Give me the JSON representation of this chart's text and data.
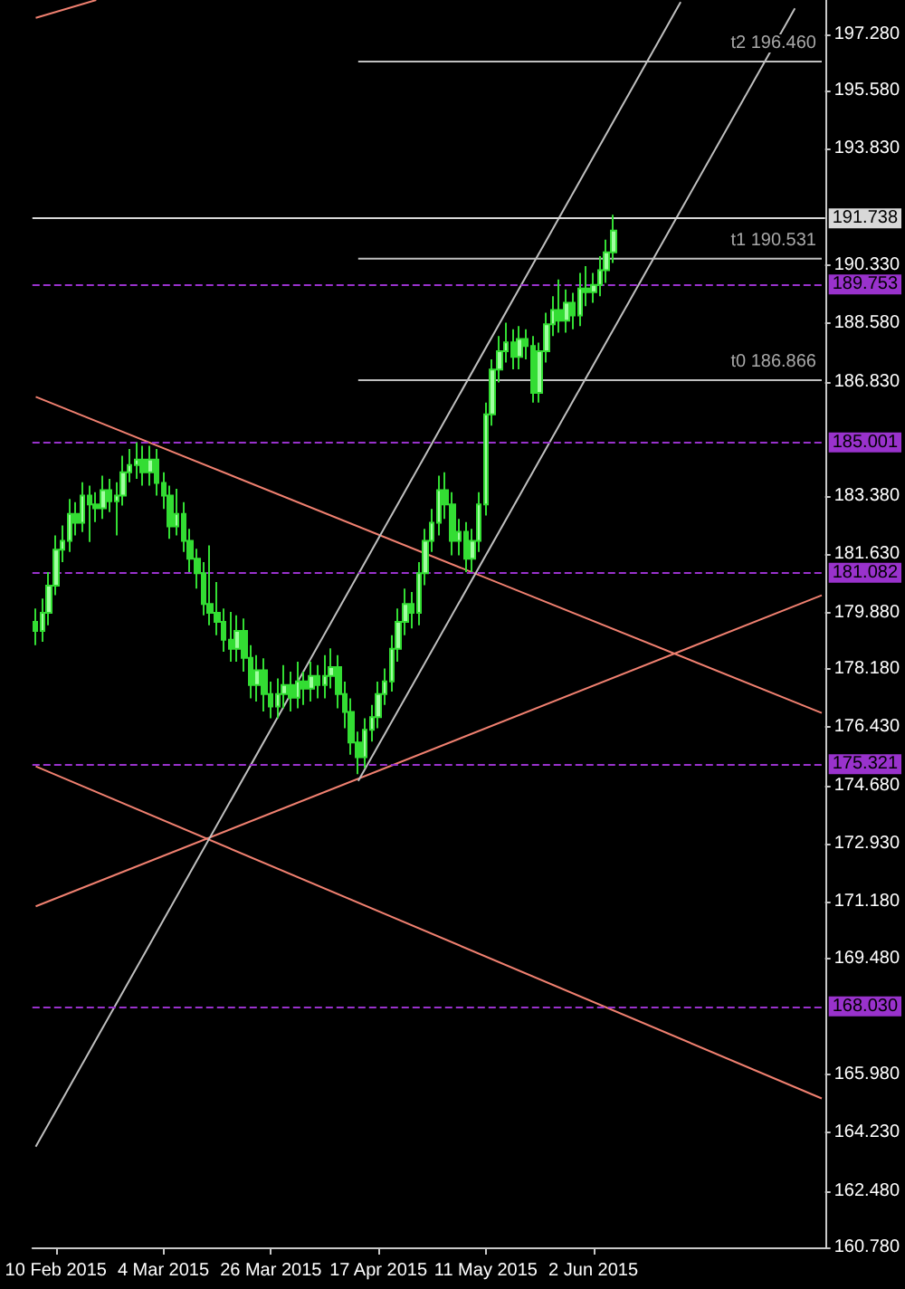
{
  "chart_data": {
    "type": "candlestick",
    "ylim": [
      160.78,
      198.31
    ],
    "categories": [
      null,
      null,
      null,
      "10 Feb 2015",
      null,
      null,
      null,
      null,
      null,
      null,
      null,
      null,
      null,
      null,
      null,
      null,
      null,
      null,
      null,
      "4 Mar 2015",
      null,
      null,
      null,
      null,
      null,
      null,
      null,
      null,
      null,
      null,
      null,
      null,
      null,
      null,
      null,
      "26 Mar 2015",
      null,
      null,
      null,
      null,
      null,
      null,
      null,
      null,
      null,
      null,
      null,
      null,
      null,
      null,
      null,
      "17 Apr 2015",
      null,
      null,
      null,
      null,
      null,
      null,
      null,
      null,
      null,
      null,
      null,
      null,
      null,
      null,
      null,
      "11 May 2015",
      null,
      null,
      null,
      null,
      null,
      null,
      null,
      null,
      null,
      null,
      null,
      null,
      null,
      null,
      null,
      "2 Jun 2015",
      null,
      null,
      null,
      null,
      null,
      null,
      null,
      null,
      null,
      null,
      null,
      null,
      null,
      null,
      null,
      null,
      null,
      null,
      null,
      null,
      null,
      null,
      null,
      null,
      null,
      null,
      null,
      null,
      null,
      null,
      null,
      null,
      null,
      null
    ],
    "yticks": [
      {
        "value": 160.78,
        "label": "160.780"
      },
      {
        "value": 162.48,
        "label": "162.480"
      },
      {
        "value": 164.23,
        "label": "164.230"
      },
      {
        "value": 165.98,
        "label": "165.980"
      },
      {
        "value": 169.48,
        "label": "169.480"
      },
      {
        "value": 171.18,
        "label": "171.180"
      },
      {
        "value": 172.93,
        "label": "172.930"
      },
      {
        "value": 174.68,
        "label": "174.680"
      },
      {
        "value": 176.43,
        "label": "176.430"
      },
      {
        "value": 178.18,
        "label": "178.180"
      },
      {
        "value": 179.88,
        "label": "179.880"
      },
      {
        "value": 181.63,
        "label": "181.630"
      },
      {
        "value": 183.38,
        "label": "183.380"
      },
      {
        "value": 186.83,
        "label": "186.830"
      },
      {
        "value": 188.58,
        "label": "188.580"
      },
      {
        "value": 190.33,
        "label": "190.330"
      },
      {
        "value": 193.83,
        "label": "193.830"
      },
      {
        "value": 195.58,
        "label": "195.580"
      },
      {
        "value": 197.28,
        "label": "197.280"
      }
    ],
    "grid": false,
    "ref_lines": [
      {
        "axis": "y",
        "value": 191.738,
        "label": "191.738",
        "color": "#d8d8d8",
        "line_style": "solid"
      },
      {
        "axis": "y",
        "value": 189.753,
        "label": "189.753",
        "color": "#9932cc",
        "line_style": "dashed"
      },
      {
        "axis": "y",
        "value": 185.001,
        "label": "185.001",
        "color": "#9932cc",
        "line_style": "dashed"
      },
      {
        "axis": "y",
        "value": 181.082,
        "label": "181.082",
        "color": "#9932cc",
        "line_style": "dashed"
      },
      {
        "axis": "y",
        "value": 175.321,
        "label": "175.321",
        "color": "#9932cc",
        "line_style": "dashed"
      },
      {
        "axis": "y",
        "value": 168.03,
        "label": "168.030",
        "color": "#9932cc",
        "line_style": "dashed"
      }
    ],
    "series": [
      {
        "color": "#33dd33",
        "ohlc": [
          [
            179.6,
            180.0,
            178.9,
            179.33
          ],
          [
            179.33,
            180.3,
            179.0,
            179.87
          ],
          [
            179.87,
            181.1,
            179.5,
            180.69
          ],
          [
            180.69,
            182.2,
            180.4,
            181.77
          ],
          [
            181.77,
            182.5,
            181.4,
            182.04
          ],
          [
            182.04,
            183.3,
            181.7,
            182.85
          ],
          [
            182.85,
            183.2,
            182.2,
            182.58
          ],
          [
            182.58,
            183.8,
            182.3,
            183.4
          ],
          [
            183.4,
            183.7,
            182.0,
            183.13
          ],
          [
            183.13,
            183.5,
            182.6,
            183.02
          ],
          [
            183.02,
            184.0,
            182.7,
            183.56
          ],
          [
            183.56,
            183.9,
            182.9,
            183.23
          ],
          [
            183.23,
            183.8,
            182.2,
            183.4
          ],
          [
            183.4,
            184.6,
            183.1,
            184.1
          ],
          [
            184.1,
            184.8,
            183.8,
            184.32
          ],
          [
            184.32,
            185.0,
            183.9,
            184.48
          ],
          [
            184.48,
            184.9,
            183.7,
            184.1
          ],
          [
            184.1,
            184.9,
            183.7,
            184.48
          ],
          [
            184.48,
            184.8,
            183.4,
            183.78
          ],
          [
            183.78,
            184.1,
            183.0,
            183.4
          ],
          [
            183.4,
            183.7,
            182.1,
            182.47
          ],
          [
            182.47,
            183.6,
            182.2,
            182.85
          ],
          [
            182.85,
            183.2,
            181.7,
            182.04
          ],
          [
            182.04,
            182.4,
            181.1,
            181.5
          ],
          [
            181.5,
            181.8,
            180.6,
            181.06
          ],
          [
            181.06,
            181.4,
            179.8,
            180.14
          ],
          [
            180.14,
            181.9,
            179.5,
            179.87
          ],
          [
            179.87,
            180.8,
            179.2,
            179.6
          ],
          [
            179.6,
            180.0,
            178.7,
            179.06
          ],
          [
            179.06,
            179.9,
            178.4,
            178.79
          ],
          [
            178.79,
            179.8,
            178.4,
            179.33
          ],
          [
            179.33,
            179.7,
            178.1,
            178.52
          ],
          [
            178.52,
            178.9,
            177.3,
            177.7
          ],
          [
            177.7,
            178.6,
            177.2,
            178.14
          ],
          [
            178.14,
            178.5,
            176.9,
            177.43
          ],
          [
            177.43,
            177.8,
            176.7,
            177.05
          ],
          [
            177.05,
            177.9,
            176.7,
            177.43
          ],
          [
            177.43,
            178.3,
            177.0,
            177.7
          ],
          [
            177.7,
            178.1,
            176.9,
            177.32
          ],
          [
            177.32,
            178.4,
            177.0,
            177.81
          ],
          [
            177.81,
            178.1,
            177.1,
            177.59
          ],
          [
            177.59,
            178.4,
            177.2,
            177.97
          ],
          [
            177.97,
            178.3,
            177.3,
            177.7
          ],
          [
            177.7,
            178.6,
            177.3,
            177.97
          ],
          [
            177.97,
            178.8,
            177.6,
            178.24
          ],
          [
            178.24,
            178.6,
            177.0,
            177.43
          ],
          [
            177.43,
            177.8,
            176.4,
            176.89
          ],
          [
            176.89,
            177.3,
            175.6,
            175.97
          ],
          [
            175.97,
            176.3,
            175.02,
            175.53
          ],
          [
            175.53,
            176.7,
            175.2,
            176.35
          ],
          [
            176.35,
            177.1,
            176.0,
            176.73
          ],
          [
            176.73,
            177.8,
            176.4,
            177.43
          ],
          [
            177.43,
            178.2,
            177.1,
            177.81
          ],
          [
            177.81,
            179.2,
            177.5,
            178.79
          ],
          [
            178.79,
            180.0,
            178.4,
            179.6
          ],
          [
            179.6,
            180.6,
            179.2,
            180.14
          ],
          [
            180.14,
            180.5,
            179.4,
            179.87
          ],
          [
            179.87,
            181.4,
            179.5,
            181.06
          ],
          [
            181.06,
            182.4,
            180.7,
            182.04
          ],
          [
            182.04,
            183.0,
            181.7,
            182.58
          ],
          [
            182.58,
            184.0,
            182.2,
            183.56
          ],
          [
            183.56,
            184.1,
            182.7,
            183.13
          ],
          [
            183.13,
            183.5,
            181.6,
            182.04
          ],
          [
            182.04,
            182.7,
            181.6,
            182.31
          ],
          [
            182.31,
            182.6,
            181.1,
            181.5
          ],
          [
            181.5,
            182.4,
            181.1,
            182.04
          ],
          [
            182.04,
            183.5,
            181.7,
            183.13
          ],
          [
            183.13,
            186.2,
            182.8,
            185.84
          ],
          [
            185.84,
            187.5,
            185.5,
            187.19
          ],
          [
            187.19,
            188.2,
            186.8,
            187.74
          ],
          [
            187.74,
            188.6,
            187.4,
            188.01
          ],
          [
            188.01,
            188.4,
            187.2,
            187.57
          ],
          [
            187.57,
            188.5,
            187.2,
            188.11
          ],
          [
            188.11,
            188.4,
            187.5,
            187.9
          ],
          [
            187.9,
            188.2,
            186.2,
            186.49
          ],
          [
            186.49,
            188.0,
            186.2,
            187.74
          ],
          [
            187.74,
            188.9,
            187.4,
            188.55
          ],
          [
            188.55,
            189.4,
            188.2,
            188.98
          ],
          [
            188.98,
            189.9,
            188.3,
            188.66
          ],
          [
            188.66,
            189.6,
            188.3,
            189.2
          ],
          [
            189.2,
            189.5,
            188.4,
            188.82
          ],
          [
            188.82,
            190.1,
            188.5,
            189.63
          ],
          [
            189.63,
            190.3,
            189.1,
            189.52
          ],
          [
            189.52,
            190.1,
            189.2,
            189.74
          ],
          [
            189.74,
            190.6,
            189.4,
            190.18
          ],
          [
            190.18,
            191.1,
            189.8,
            190.72
          ],
          [
            190.72,
            191.85,
            190.4,
            191.37
          ],
          null,
          null,
          null,
          null,
          null,
          null,
          null,
          null,
          null,
          null,
          null,
          null,
          null,
          null,
          null,
          null,
          null,
          null,
          null,
          null,
          null,
          null,
          null,
          null,
          null,
          null,
          null,
          null,
          null,
          null,
          null
        ]
      },
      {
        "type": "line",
        "color": "#f08070",
        "values": [
          186.37,
          null,
          null,
          null,
          null,
          null,
          null,
          null,
          null,
          null,
          null,
          null,
          null,
          null,
          null,
          null,
          null,
          null,
          null,
          null,
          null,
          null,
          null,
          null,
          null,
          null,
          null,
          null,
          null,
          null,
          null,
          null,
          null,
          null,
          null,
          null,
          null,
          null,
          null,
          null,
          null,
          null,
          null,
          null,
          null,
          null,
          null,
          null,
          null,
          null,
          null,
          null,
          null,
          null,
          null,
          null,
          null,
          null,
          null,
          null,
          null,
          null,
          null,
          null,
          null,
          null,
          null,
          null,
          null,
          null,
          null,
          null,
          null,
          null,
          null,
          null,
          null,
          null,
          null,
          null,
          null,
          null,
          null,
          null,
          null,
          null,
          null,
          null,
          null,
          null,
          null,
          null,
          null,
          null,
          null,
          null,
          null,
          null,
          null,
          null,
          null,
          null,
          null,
          null,
          null,
          null,
          null,
          null,
          null,
          null,
          null,
          null,
          null,
          null,
          null,
          null,
          null,
          176.86
        ]
      },
      {
        "type": "line",
        "color": "#f08070",
        "values": [
          175.25,
          null,
          null,
          null,
          null,
          null,
          null,
          null,
          null,
          null,
          null,
          null,
          null,
          null,
          null,
          null,
          null,
          null,
          null,
          null,
          null,
          null,
          null,
          null,
          null,
          null,
          null,
          null,
          null,
          null,
          null,
          null,
          null,
          null,
          null,
          null,
          null,
          null,
          null,
          null,
          null,
          null,
          null,
          null,
          null,
          null,
          null,
          null,
          null,
          null,
          null,
          null,
          null,
          null,
          null,
          null,
          null,
          null,
          null,
          null,
          null,
          null,
          null,
          null,
          null,
          null,
          null,
          null,
          null,
          null,
          null,
          null,
          null,
          null,
          null,
          null,
          null,
          null,
          null,
          null,
          null,
          null,
          null,
          null,
          null,
          null,
          null,
          null,
          null,
          null,
          null,
          null,
          null,
          null,
          null,
          null,
          null,
          null,
          null,
          null,
          null,
          null,
          null,
          null,
          null,
          null,
          null,
          null,
          null,
          null,
          null,
          null,
          null,
          null,
          null,
          null,
          null,
          165.26
        ]
      },
      {
        "type": "line",
        "color": "#f08070",
        "values": [
          171.04,
          null,
          null,
          null,
          null,
          null,
          null,
          null,
          null,
          null,
          null,
          null,
          null,
          null,
          null,
          null,
          null,
          null,
          null,
          null,
          null,
          null,
          null,
          null,
          null,
          null,
          null,
          null,
          null,
          null,
          null,
          null,
          null,
          null,
          null,
          null,
          null,
          null,
          null,
          null,
          null,
          null,
          null,
          null,
          null,
          null,
          null,
          null,
          null,
          null,
          null,
          null,
          null,
          null,
          null,
          null,
          null,
          null,
          null,
          null,
          null,
          null,
          null,
          null,
          null,
          null,
          null,
          null,
          null,
          null,
          null,
          null,
          null,
          null,
          null,
          null,
          null,
          null,
          null,
          null,
          null,
          null,
          null,
          null,
          null,
          null,
          null,
          null,
          null,
          null,
          null,
          null,
          null,
          null,
          null,
          null,
          null,
          null,
          null,
          null,
          null,
          null,
          null,
          null,
          null,
          null,
          null,
          null,
          null,
          null,
          null,
          null,
          null,
          null,
          null,
          null,
          null,
          180.4
        ]
      },
      {
        "type": "line",
        "color": "#f08070",
        "values": [
          197.77,
          null,
          null,
          null,
          null,
          null,
          null,
          null,
          null,
          198.31,
          null,
          null,
          null,
          null,
          null,
          null,
          null,
          null,
          null,
          null,
          null,
          null,
          null,
          null,
          null,
          null,
          null,
          null,
          null,
          null,
          null,
          null,
          null,
          null,
          null,
          null,
          null,
          null,
          null,
          null,
          null,
          null,
          null,
          null,
          null,
          null,
          null,
          null,
          null,
          null,
          null,
          null,
          null,
          null,
          null,
          null,
          null,
          null,
          null,
          null,
          null,
          null,
          null,
          null,
          null,
          null,
          null,
          null,
          null,
          null,
          null,
          null,
          null,
          null,
          null,
          null,
          null,
          null,
          null,
          null,
          null,
          null,
          null,
          null,
          null,
          null,
          null,
          null,
          null,
          null,
          null,
          null,
          null,
          null,
          null,
          null,
          null,
          null,
          null,
          null,
          null,
          null,
          null,
          null,
          null,
          null,
          null,
          null,
          null,
          null,
          null,
          null,
          null,
          null,
          null,
          null,
          null,
          null
        ]
      },
      {
        "type": "line",
        "color": "#c0c0c0",
        "values": [
          163.81,
          null,
          null,
          null,
          null,
          null,
          null,
          null,
          null,
          null,
          null,
          null,
          null,
          null,
          null,
          null,
          null,
          null,
          null,
          null,
          null,
          null,
          null,
          null,
          null,
          null,
          null,
          null,
          null,
          null,
          null,
          null,
          null,
          null,
          null,
          null,
          null,
          null,
          null,
          null,
          null,
          null,
          null,
          null,
          null,
          null,
          null,
          null,
          null,
          null,
          null,
          null,
          null,
          null,
          null,
          null,
          null,
          null,
          null,
          null,
          null,
          null,
          null,
          null,
          null,
          null,
          null,
          null,
          null,
          null,
          null,
          null,
          null,
          null,
          null,
          null,
          null,
          null,
          null,
          null,
          null,
          null,
          null,
          null,
          null,
          null,
          null,
          null,
          null,
          null,
          null,
          null,
          null,
          null,
          null,
          null,
          198.25,
          null,
          null,
          null,
          null,
          null,
          null,
          null,
          null,
          null,
          null,
          null,
          null,
          null,
          null,
          null,
          null,
          null,
          null,
          null,
          null,
          null
        ]
      },
      {
        "type": "line",
        "color": "#c0c0c0",
        "values": [
          null,
          null,
          null,
          null,
          null,
          null,
          null,
          null,
          null,
          null,
          null,
          null,
          null,
          null,
          null,
          null,
          null,
          null,
          null,
          null,
          null,
          null,
          null,
          null,
          null,
          null,
          null,
          null,
          null,
          null,
          null,
          null,
          null,
          null,
          null,
          null,
          null,
          null,
          null,
          null,
          null,
          null,
          null,
          null,
          null,
          null,
          null,
          null,
          174.81,
          null,
          null,
          null,
          null,
          null,
          null,
          null,
          null,
          null,
          null,
          null,
          null,
          null,
          null,
          null,
          null,
          null,
          null,
          null,
          null,
          null,
          null,
          null,
          null,
          null,
          null,
          null,
          null,
          null,
          null,
          null,
          null,
          null,
          null,
          null,
          null,
          null,
          null,
          null,
          null,
          null,
          null,
          null,
          null,
          null,
          null,
          null,
          null,
          null,
          null,
          null,
          null,
          null,
          null,
          null,
          null,
          null,
          null,
          null,
          null,
          null,
          null,
          null,
          null,
          198.06,
          null,
          null,
          null,
          null
        ]
      },
      {
        "type": "line",
        "color": "#c0c0c0",
        "name": "t2 196.460",
        "values": [
          null,
          null,
          null,
          null,
          null,
          null,
          null,
          null,
          null,
          null,
          null,
          null,
          null,
          null,
          null,
          null,
          null,
          null,
          null,
          null,
          null,
          null,
          null,
          null,
          null,
          null,
          null,
          null,
          null,
          null,
          null,
          null,
          null,
          null,
          null,
          null,
          null,
          null,
          null,
          null,
          null,
          null,
          null,
          null,
          null,
          null,
          null,
          null,
          196.46,
          null,
          null,
          null,
          null,
          null,
          null,
          null,
          null,
          null,
          null,
          null,
          null,
          null,
          null,
          null,
          null,
          null,
          null,
          null,
          null,
          null,
          null,
          null,
          null,
          null,
          null,
          null,
          null,
          null,
          null,
          null,
          null,
          null,
          null,
          null,
          null,
          null,
          null,
          null,
          null,
          null,
          null,
          null,
          null,
          null,
          null,
          null,
          null,
          null,
          null,
          null,
          null,
          null,
          null,
          null,
          null,
          null,
          null,
          null,
          null,
          null,
          null,
          null,
          null,
          null,
          null,
          null,
          null,
          196.46
        ]
      },
      {
        "type": "line",
        "color": "#c0c0c0",
        "name": "t1 190.531",
        "values": [
          null,
          null,
          null,
          null,
          null,
          null,
          null,
          null,
          null,
          null,
          null,
          null,
          null,
          null,
          null,
          null,
          null,
          null,
          null,
          null,
          null,
          null,
          null,
          null,
          null,
          null,
          null,
          null,
          null,
          null,
          null,
          null,
          null,
          null,
          null,
          null,
          null,
          null,
          null,
          null,
          null,
          null,
          null,
          null,
          null,
          null,
          null,
          null,
          190.53,
          null,
          null,
          null,
          null,
          null,
          null,
          null,
          null,
          null,
          null,
          null,
          null,
          null,
          null,
          null,
          null,
          null,
          null,
          null,
          null,
          null,
          null,
          null,
          null,
          null,
          null,
          null,
          null,
          null,
          null,
          null,
          null,
          null,
          null,
          null,
          null,
          null,
          null,
          null,
          null,
          null,
          null,
          null,
          null,
          null,
          null,
          null,
          null,
          null,
          null,
          null,
          null,
          null,
          null,
          null,
          null,
          null,
          null,
          null,
          null,
          null,
          null,
          null,
          null,
          null,
          null,
          null,
          null,
          190.53
        ]
      },
      {
        "type": "line",
        "color": "#c0c0c0",
        "name": "t0 186.866",
        "values": [
          null,
          null,
          null,
          null,
          null,
          null,
          null,
          null,
          null,
          null,
          null,
          null,
          null,
          null,
          null,
          null,
          null,
          null,
          null,
          null,
          null,
          null,
          null,
          null,
          null,
          null,
          null,
          null,
          null,
          null,
          null,
          null,
          null,
          null,
          null,
          null,
          null,
          null,
          null,
          null,
          null,
          null,
          null,
          null,
          null,
          null,
          null,
          null,
          186.87,
          null,
          null,
          null,
          null,
          null,
          null,
          null,
          null,
          null,
          null,
          null,
          null,
          null,
          null,
          null,
          null,
          null,
          null,
          null,
          null,
          null,
          null,
          null,
          null,
          null,
          null,
          null,
          null,
          null,
          null,
          null,
          null,
          null,
          null,
          null,
          null,
          null,
          null,
          null,
          null,
          null,
          null,
          null,
          null,
          null,
          null,
          null,
          null,
          null,
          null,
          null,
          null,
          null,
          null,
          null,
          null,
          null,
          null,
          null,
          null,
          null,
          null,
          null,
          null,
          null,
          null,
          null,
          null,
          186.87
        ]
      }
    ]
  }
}
